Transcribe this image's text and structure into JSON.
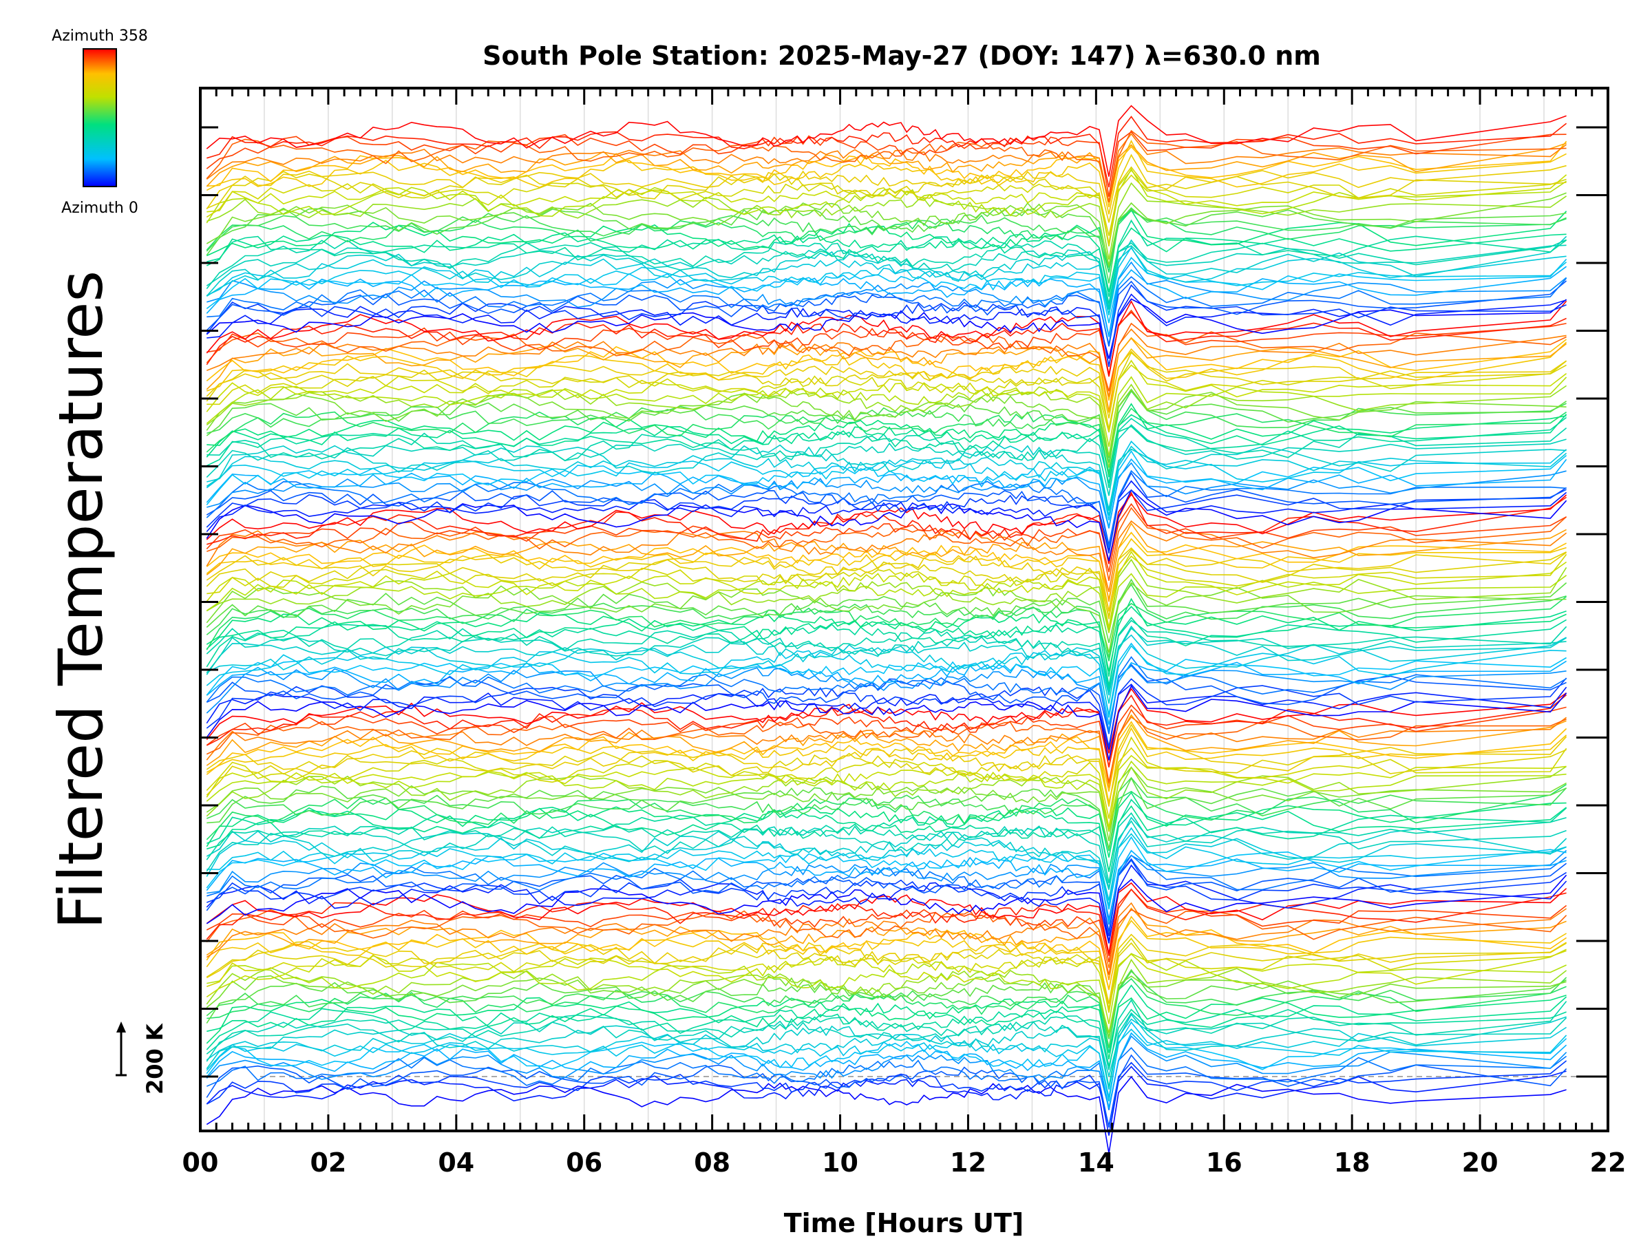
{
  "chart_data": {
    "type": "line",
    "title": "South Pole Station: 2025-May-27 (DOY: 147) λ=630.0 nm",
    "xlabel": "Time [Hours UT]",
    "ylabel": "Filtered Temperatures",
    "xlim": [
      0,
      22
    ],
    "x_ticks": [
      "00",
      "02",
      "04",
      "06",
      "08",
      "10",
      "12",
      "14",
      "16",
      "18",
      "20",
      "22"
    ],
    "colorbar": {
      "top_label": "Azimuth 358",
      "bottom_label": "Azimuth 0",
      "colors": [
        "#0000ff",
        "#00c0ff",
        "#00e080",
        "#c0e000",
        "#ffc000",
        "#ff0000"
      ]
    },
    "scale_bar": {
      "label": "200 K",
      "value": 200
    },
    "reference_line": "dashed baseline",
    "notable_feature": {
      "x": 14.2,
      "description": "sharp dip across all traces"
    },
    "series": [
      {
        "azimuth_start": 0,
        "azimuth_end": 358,
        "repeats": 5
      }
    ]
  }
}
